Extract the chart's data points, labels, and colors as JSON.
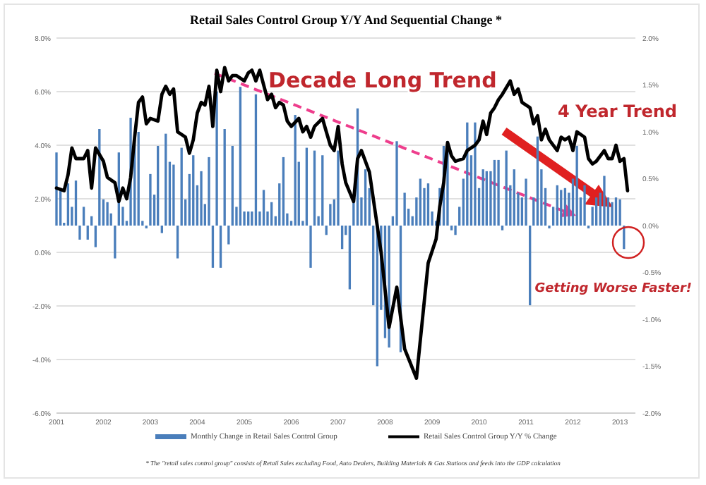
{
  "chart_data": {
    "type": "bar",
    "title": "Retail Sales Control Group Y/Y And Sequential Change *",
    "x": [
      "2001-01",
      "2001-02",
      "2001-03",
      "2001-04",
      "2001-05",
      "2001-06",
      "2001-07",
      "2001-08",
      "2001-09",
      "2001-10",
      "2001-11",
      "2001-12",
      "2002-01",
      "2002-02",
      "2002-03",
      "2002-04",
      "2002-05",
      "2002-06",
      "2002-07",
      "2002-08",
      "2002-09",
      "2002-10",
      "2002-11",
      "2002-12",
      "2003-01",
      "2003-02",
      "2003-03",
      "2003-04",
      "2003-05",
      "2003-06",
      "2003-07",
      "2003-08",
      "2003-09",
      "2003-10",
      "2003-11",
      "2003-12",
      "2004-01",
      "2004-02",
      "2004-03",
      "2004-04",
      "2004-05",
      "2004-06",
      "2004-07",
      "2004-08",
      "2004-09",
      "2004-10",
      "2004-11",
      "2004-12",
      "2005-01",
      "2005-02",
      "2005-03",
      "2005-04",
      "2005-05",
      "2005-06",
      "2005-07",
      "2005-08",
      "2005-09",
      "2005-10",
      "2005-11",
      "2005-12",
      "2006-01",
      "2006-02",
      "2006-03",
      "2006-04",
      "2006-05",
      "2006-06",
      "2006-07",
      "2006-08",
      "2006-09",
      "2006-10",
      "2006-11",
      "2006-12",
      "2007-01",
      "2007-02",
      "2007-03",
      "2007-04",
      "2007-05",
      "2007-06",
      "2007-07",
      "2007-08",
      "2007-09",
      "2007-10",
      "2007-11",
      "2007-12",
      "2008-01",
      "2008-02",
      "2008-03",
      "2008-04",
      "2008-05",
      "2008-06",
      "2008-07",
      "2008-08",
      "2008-09",
      "2008-10",
      "2008-11",
      "2008-12",
      "2009-01",
      "2009-02",
      "2009-03",
      "2009-04",
      "2009-05",
      "2009-06",
      "2009-07",
      "2009-08",
      "2009-09",
      "2009-10",
      "2009-11",
      "2009-12",
      "2010-01",
      "2010-02",
      "2010-03",
      "2010-04",
      "2010-05",
      "2010-06",
      "2010-07",
      "2010-08",
      "2010-09",
      "2010-10",
      "2010-11",
      "2010-12",
      "2011-01",
      "2011-02",
      "2011-03",
      "2011-04",
      "2011-05",
      "2011-06",
      "2011-07",
      "2011-08",
      "2011-09",
      "2011-10",
      "2011-11",
      "2011-12",
      "2012-01",
      "2012-02",
      "2012-03",
      "2012-04",
      "2012-05",
      "2012-06",
      "2012-07",
      "2012-08",
      "2012-09",
      "2012-10",
      "2012-11",
      "2012-12",
      "2013-01",
      "2013-02"
    ],
    "xlim": [
      "2001-01",
      "2013-05"
    ],
    "xticks": [
      {
        "value": "2001-01",
        "label": "2001"
      },
      {
        "value": "2002-01",
        "label": "2002"
      },
      {
        "value": "2003-01",
        "label": "2003"
      },
      {
        "value": "2004-01",
        "label": "2004"
      },
      {
        "value": "2005-01",
        "label": "2005"
      },
      {
        "value": "2006-01",
        "label": "2006"
      },
      {
        "value": "2007-01",
        "label": "2007"
      },
      {
        "value": "2008-01",
        "label": "2008"
      },
      {
        "value": "2009-01",
        "label": "2009"
      },
      {
        "value": "2010-01",
        "label": "2010"
      },
      {
        "value": "2011-01",
        "label": "2011"
      },
      {
        "value": "2012-01",
        "label": "2012"
      },
      {
        "value": "2013-01",
        "label": "2013"
      }
    ],
    "ylim": [
      -6,
      8
    ],
    "yticks": [
      {
        "value": -6,
        "label": "-6.0%"
      },
      {
        "value": -4,
        "label": "-4.0%"
      },
      {
        "value": -2,
        "label": "-2.0%"
      },
      {
        "value": 0,
        "label": "0.0%"
      },
      {
        "value": 2,
        "label": "2.0%"
      },
      {
        "value": 4,
        "label": "4.0%"
      },
      {
        "value": 6,
        "label": "6.0%"
      },
      {
        "value": 8,
        "label": "8.0%"
      }
    ],
    "y2lim": [
      -2,
      2
    ],
    "y2ticks": [
      {
        "value": -2,
        "label": "-2.0%"
      },
      {
        "value": -1.5,
        "label": "-1.5%"
      },
      {
        "value": -1,
        "label": "-1.0%"
      },
      {
        "value": -0.5,
        "label": "-0.5%"
      },
      {
        "value": 0,
        "label": "0.0%"
      },
      {
        "value": 0.5,
        "label": "0.5%"
      },
      {
        "value": 1,
        "label": "1.0%"
      },
      {
        "value": 1.5,
        "label": "1.5%"
      },
      {
        "value": 2,
        "label": "2.0%"
      }
    ],
    "grid": "y",
    "legend": "bottom",
    "series": [
      {
        "name": "Monthly Change in Retail Sales Control Group",
        "type": "bar",
        "axis": "y2",
        "color": "#4a7ebb",
        "values": [
          0.78,
          0.4,
          0.03,
          0.45,
          0.2,
          0.48,
          -0.15,
          0.2,
          -0.15,
          0.1,
          -0.23,
          1.03,
          0.28,
          0.25,
          0.13,
          -0.35,
          0.78,
          0.2,
          0.05,
          1.15,
          1.0,
          1.0,
          0.05,
          -0.03,
          0.55,
          0.33,
          0.85,
          -0.08,
          0.98,
          0.68,
          0.65,
          -0.35,
          0.83,
          0.28,
          0.55,
          0.75,
          0.43,
          0.58,
          0.23,
          0.73,
          -0.45,
          1.43,
          -0.45,
          1.03,
          -0.2,
          0.85,
          0.2,
          1.48,
          0.15,
          0.15,
          0.15,
          1.4,
          0.15,
          0.38,
          0.15,
          0.25,
          0.1,
          0.45,
          0.73,
          0.13,
          0.05,
          1.18,
          0.68,
          0.05,
          0.83,
          -0.45,
          0.8,
          0.1,
          0.75,
          -0.1,
          0.23,
          0.28,
          0.8,
          -0.25,
          -0.1,
          -0.68,
          0.3,
          1.25,
          0.3,
          0.6,
          0.4,
          -0.85,
          -1.5,
          -0.9,
          -1.2,
          -1.3,
          0.1,
          0.9,
          -1.35,
          0.35,
          0.18,
          0.1,
          0.3,
          0.5,
          0.4,
          0.45,
          0.15,
          0.05,
          0.4,
          0.85,
          0.9,
          -0.05,
          -0.1,
          0.2,
          0.5,
          1.1,
          0.75,
          1.1,
          0.4,
          0.6,
          0.58,
          0.58,
          0.7,
          0.7,
          -0.05,
          0.8,
          0.43,
          0.6,
          0.35,
          0.3,
          0.5,
          -0.85,
          0.3,
          0.95,
          0.6,
          0.4,
          -0.03,
          0.2,
          0.43,
          0.38,
          0.4,
          0.35,
          0.5,
          0.85,
          0.3,
          0.43,
          -0.03,
          0.2,
          0.3,
          0.35,
          0.53,
          0.3,
          0.25,
          0.3,
          0.28,
          -0.25
        ]
      },
      {
        "name": "Retail Sales Control Group Y/Y % Change",
        "type": "line",
        "axis": "y",
        "color": "#000000",
        "x": [
          "2001-01",
          "2001-03",
          "2001-04",
          "2001-05",
          "2001-06",
          "2001-08",
          "2001-09",
          "2001-10",
          "2001-11",
          "2002-01",
          "2002-02",
          "2002-04",
          "2002-05",
          "2002-06",
          "2002-07",
          "2002-08",
          "2002-09",
          "2002-10",
          "2002-11",
          "2002-12",
          "2003-01",
          "2003-03",
          "2003-04",
          "2003-05",
          "2003-06",
          "2003-07",
          "2003-08",
          "2003-10",
          "2003-11",
          "2003-12",
          "2004-01",
          "2004-02",
          "2004-03",
          "2004-04",
          "2004-05",
          "2004-06",
          "2004-07",
          "2004-08",
          "2004-09",
          "2004-10",
          "2004-11",
          "2005-01",
          "2005-02",
          "2005-03",
          "2005-04",
          "2005-05",
          "2005-07",
          "2005-08",
          "2005-09",
          "2005-10",
          "2005-11",
          "2005-12",
          "2006-01",
          "2006-03",
          "2006-04",
          "2006-05",
          "2006-06",
          "2006-07",
          "2006-09",
          "2006-10",
          "2006-11",
          "2006-12",
          "2007-01",
          "2007-02",
          "2007-03",
          "2007-05",
          "2007-06",
          "2007-07",
          "2007-09",
          "2007-12",
          "2008-02",
          "2008-04",
          "2008-06",
          "2008-09",
          "2008-12",
          "2009-02",
          "2009-03",
          "2009-04",
          "2009-05",
          "2009-06",
          "2009-07",
          "2009-09",
          "2009-10",
          "2009-12",
          "2010-01",
          "2010-02",
          "2010-03",
          "2010-04",
          "2010-05",
          "2010-06",
          "2010-07",
          "2010-09",
          "2010-10",
          "2010-11",
          "2010-12",
          "2011-02",
          "2011-03",
          "2011-04",
          "2011-05",
          "2011-06",
          "2011-07",
          "2011-09",
          "2011-10",
          "2011-11",
          "2011-12",
          "2012-01",
          "2012-02",
          "2012-04",
          "2012-05",
          "2012-06",
          "2012-07",
          "2012-09",
          "2012-10",
          "2012-11",
          "2012-12",
          "2013-01",
          "2013-02",
          "2013-03"
        ],
        "values": [
          2.4,
          2.3,
          2.9,
          3.9,
          3.5,
          3.5,
          3.8,
          2.4,
          3.9,
          3.4,
          2.8,
          2.6,
          1.9,
          2.4,
          2.0,
          2.8,
          4.3,
          5.6,
          5.8,
          4.8,
          5.0,
          4.9,
          5.9,
          6.2,
          5.9,
          6.1,
          4.5,
          4.3,
          3.7,
          4.2,
          5.2,
          5.6,
          5.5,
          6.2,
          4.7,
          6.8,
          6.0,
          6.9,
          6.4,
          6.6,
          6.6,
          6.4,
          6.7,
          6.8,
          6.4,
          6.8,
          5.7,
          5.9,
          5.4,
          5.6,
          5.5,
          4.9,
          4.7,
          5.0,
          4.5,
          4.7,
          4.3,
          4.7,
          5.0,
          4.5,
          4.0,
          3.8,
          4.7,
          3.3,
          2.6,
          1.9,
          3.5,
          3.8,
          3.0,
          0.0,
          -2.8,
          -1.3,
          -3.6,
          -4.7,
          -0.4,
          0.5,
          1.7,
          2.6,
          4.1,
          3.6,
          3.4,
          3.5,
          3.8,
          4.0,
          4.2,
          4.9,
          4.4,
          5.2,
          5.4,
          5.7,
          5.9,
          6.4,
          5.9,
          6.1,
          5.6,
          5.4,
          4.8,
          5.1,
          4.2,
          4.6,
          4.2,
          3.8,
          4.3,
          4.2,
          4.3,
          3.8,
          4.5,
          4.3,
          3.5,
          3.3,
          3.4,
          3.8,
          3.5,
          3.5,
          4.0,
          3.4,
          3.5,
          2.3
        ]
      }
    ],
    "annotations": [
      "Decade Long Trend",
      "4 Year Trend",
      "Getting Worse Faster!",
      "* The \"retail sales control group\" consists of Retail Sales excluding Food, Auto Dealers, Building Materials & Gas Stations and feeds into the GDP calculation"
    ]
  }
}
